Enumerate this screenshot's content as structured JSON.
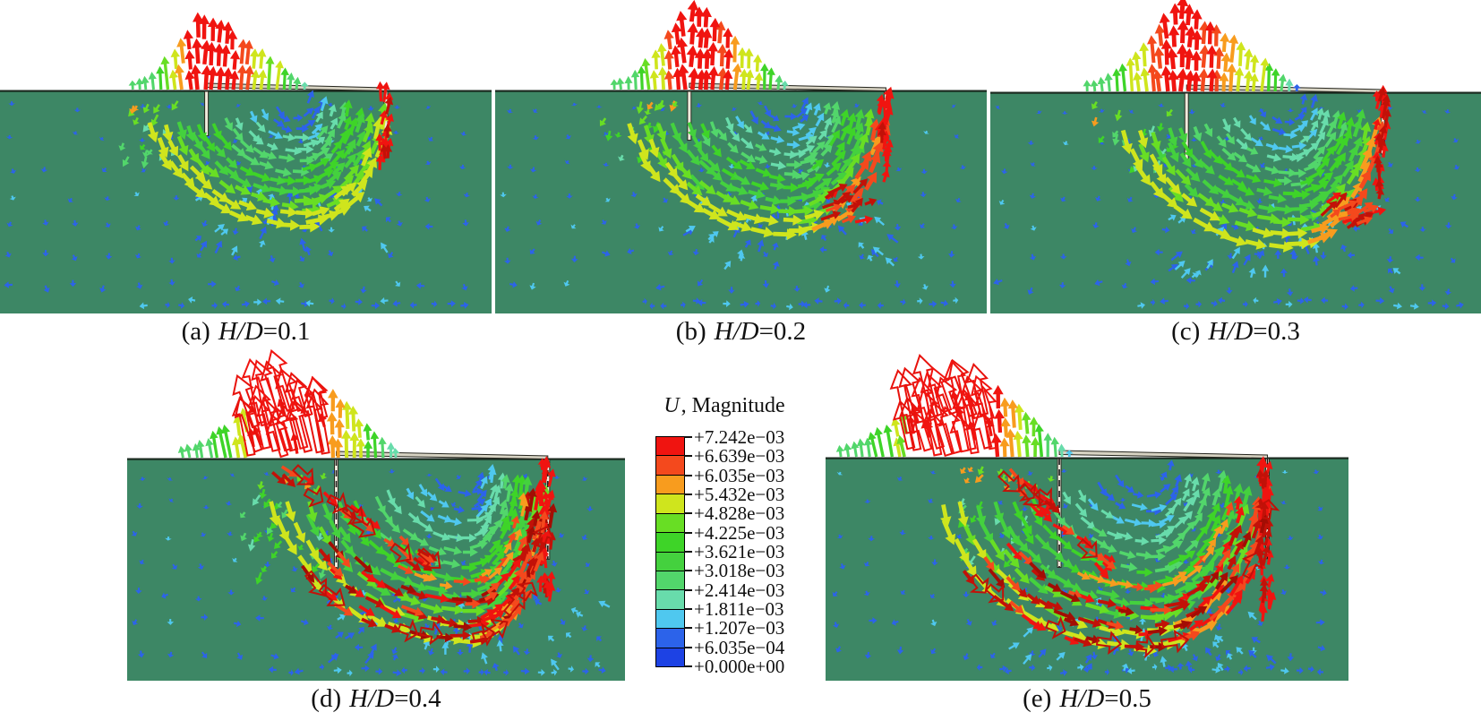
{
  "chart_data": {
    "type": "vector-field",
    "title": "",
    "description": "Five finite-element displacement vector plots of a braced excavation in soil for increasing H/D ratios, with an Abaqus-style U, Magnitude rainbow legend.",
    "legend": {
      "title_symbol": "U",
      "title_rest": ", Magnitude",
      "tick_labels": [
        "+7.242e−03",
        "+6.639e−03",
        "+6.035e−03",
        "+5.432e−03",
        "+4.828e−03",
        "+4.225e−03",
        "+3.621e−03",
        "+3.018e−03",
        "+2.414e−03",
        "+1.811e−03",
        "+1.207e−03",
        "+6.035e−04",
        "+0.000e+00"
      ],
      "band_colors": [
        "#f01410",
        "#f4491d",
        "#f89c1e",
        "#cfe51d",
        "#68de24",
        "#3ed428",
        "#44d13e",
        "#52d66b",
        "#68dcab",
        "#4fc8ef",
        "#2c63ea",
        "#1d42e4"
      ]
    },
    "deep_red_accents": [
      "#c21108",
      "#a30d04"
    ],
    "colors": {
      "soil": "#3d8765",
      "sky": "#ffffff",
      "ground_line": "#1b2a20",
      "cap_beam": "#d7d3c3",
      "wall": "#efeadb",
      "wall_edge": "#2b2b22",
      "background_arrows": "#2c63ea"
    },
    "panels": [
      {
        "key": "a",
        "caption": {
          "index": "(a)",
          "var": "H/D",
          "val": "=0.1"
        },
        "exc_left": 0.42,
        "exc_right": 0.785,
        "wall_depth": 0.2,
        "plume": {
          "left": 0.27,
          "peak": 0.41,
          "right": 0.63,
          "h_max": 92,
          "open": false
        },
        "swirl": {
          "center": 0.5,
          "r_depth": 0.59,
          "red_level": 1
        },
        "seed": 1
      },
      {
        "key": "b",
        "caption": {
          "index": "(b)",
          "var": "H/D",
          "val": "=0.2"
        },
        "exc_left": 0.395,
        "exc_right": 0.795,
        "wall_depth": 0.22,
        "plume": {
          "left": 0.24,
          "peak": 0.4,
          "right": 0.6,
          "h_max": 100,
          "open": false
        },
        "swirl": {
          "center": 0.5,
          "r_depth": 0.63,
          "red_level": 2
        },
        "seed": 2
      },
      {
        "key": "c",
        "caption": {
          "index": "(c)",
          "var": "H/D",
          "val": "=0.3"
        },
        "exc_left": 0.4,
        "exc_right": 0.8,
        "wall_depth": 0.3,
        "plume": {
          "left": 0.2,
          "peak": 0.385,
          "right": 0.63,
          "h_max": 104,
          "open": false
        },
        "swirl": {
          "center": 0.52,
          "r_depth": 0.68,
          "red_level": 3
        },
        "seed": 3
      },
      {
        "key": "d",
        "caption": {
          "index": "(d)",
          "var": "H/D",
          "val": "=0.4"
        },
        "exc_left": 0.42,
        "exc_right": 0.845,
        "wall_depth": 0.49,
        "plume": {
          "left": 0.11,
          "peak": 0.33,
          "right": 0.55,
          "h_max": 118,
          "open": true
        },
        "swirl": {
          "center": 0.62,
          "r_depth": 0.8,
          "red_level": 4
        },
        "seed": 4
      },
      {
        "key": "e",
        "caption": {
          "index": "(e)",
          "var": "H/D",
          "val": "=0.5"
        },
        "exc_left": 0.447,
        "exc_right": 0.845,
        "wall_depth": 0.49,
        "plume": {
          "left": 0.03,
          "peak": 0.25,
          "right": 0.47,
          "h_max": 118,
          "open": true
        },
        "swirl": {
          "center": 0.42,
          "r_depth": 0.84,
          "red_level": 5
        },
        "seed": 5
      }
    ]
  }
}
